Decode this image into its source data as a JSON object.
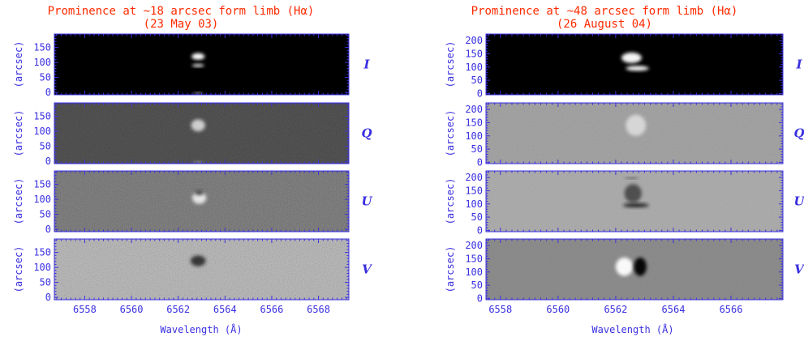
{
  "chart_data": [
    {
      "type": "heatmap",
      "title": "Prominence at ~18 arcsec form limb (Hα)",
      "subtitle": "(23 May 03)",
      "xlabel": "Wavelength (Å)",
      "ylabel": "(arcsec)",
      "xlim": [
        6556.7,
        6569.3
      ],
      "ylim": [
        -8,
        195
      ],
      "x_ticks": [
        6558,
        6560,
        6562,
        6564,
        6566,
        6568
      ],
      "y_ticks": [
        0,
        50,
        100,
        150
      ],
      "panels": [
        {
          "stokes": "I",
          "background": "#000000",
          "noise": 0,
          "features": [
            {
              "x": 6562.85,
              "y": 120,
              "sx": 0.28,
              "sy": 11,
              "tone": "#ffffff",
              "opacity": 1.0
            },
            {
              "x": 6562.85,
              "y": 90,
              "sx": 0.26,
              "sy": 5,
              "tone": "#ffffff",
              "opacity": 0.95
            },
            {
              "x": 6562.85,
              "y": -3,
              "sx": 0.22,
              "sy": 3,
              "tone": "#ffffff",
              "opacity": 0.75
            }
          ]
        },
        {
          "stokes": "Q",
          "background": "#1e1e1e",
          "noise": 0.35,
          "features": [
            {
              "x": 6562.85,
              "y": 120,
              "sx": 0.3,
              "sy": 20,
              "tone": "#dddddd",
              "opacity": 0.9
            },
            {
              "x": 6562.85,
              "y": -3,
              "sx": 0.22,
              "sy": 3,
              "tone": "#dddddd",
              "opacity": 0.6
            }
          ]
        },
        {
          "stokes": "U",
          "background": "#505050",
          "noise": 0.45,
          "features": [
            {
              "x": 6562.9,
              "y": 105,
              "sx": 0.3,
              "sy": 20,
              "tone": "#f0f0f0",
              "opacity": 0.9
            },
            {
              "x": 6562.9,
              "y": 122,
              "sx": 0.18,
              "sy": 8,
              "tone": "#202020",
              "opacity": 0.8
            }
          ]
        },
        {
          "stokes": "V",
          "background": "#a8a8a8",
          "noise": 0.55,
          "features": [
            {
              "x": 6562.85,
              "y": 122,
              "sx": 0.32,
              "sy": 18,
              "tone": "#202020",
              "opacity": 0.85
            }
          ]
        }
      ]
    },
    {
      "type": "heatmap",
      "title": "Prominence at ~48 arcsec form limb (Hα)",
      "subtitle": "(26 August 04)",
      "xlabel": "Wavelength (Å)",
      "ylabel": "(arcsec)",
      "xlim": [
        6557.5,
        6567.8
      ],
      "ylim": [
        -5,
        225
      ],
      "x_ticks": [
        6558,
        6560,
        6562,
        6564,
        6566
      ],
      "y_ticks": [
        0,
        50,
        100,
        150,
        200
      ],
      "panels": [
        {
          "stokes": "I",
          "background": "#000000",
          "noise": 0,
          "features": [
            {
              "x": 6562.55,
              "y": 135,
              "sx": 0.35,
              "sy": 20,
              "tone": "#f4f4f4",
              "opacity": 1.0
            },
            {
              "x": 6562.75,
              "y": 95,
              "sx": 0.4,
              "sy": 9,
              "tone": "#ffffff",
              "opacity": 1.0
            }
          ]
        },
        {
          "stokes": "Q",
          "background": "#989898",
          "noise": 0.25,
          "features": [
            {
              "x": 6562.7,
              "y": 140,
              "sx": 0.35,
              "sy": 40,
              "tone": "#e4e4e4",
              "opacity": 0.8
            }
          ]
        },
        {
          "stokes": "U",
          "background": "#a6a6a6",
          "noise": 0.15,
          "features": [
            {
              "x": 6562.6,
              "y": 140,
              "sx": 0.3,
              "sy": 35,
              "tone": "#404040",
              "opacity": 0.85
            },
            {
              "x": 6562.7,
              "y": 95,
              "sx": 0.45,
              "sy": 8,
              "tone": "#1e1e1e",
              "opacity": 0.95
            },
            {
              "x": 6562.55,
              "y": 198,
              "sx": 0.25,
              "sy": 3,
              "tone": "#303030",
              "opacity": 0.8
            }
          ]
        },
        {
          "stokes": "V",
          "background": "#828282",
          "noise": 0.15,
          "features": [
            {
              "x": 6562.3,
              "y": 120,
              "sx": 0.3,
              "sy": 35,
              "tone": "#ffffff",
              "opacity": 0.95
            },
            {
              "x": 6562.85,
              "y": 120,
              "sx": 0.22,
              "sy": 35,
              "tone": "#000000",
              "opacity": 0.95
            }
          ]
        }
      ]
    }
  ]
}
